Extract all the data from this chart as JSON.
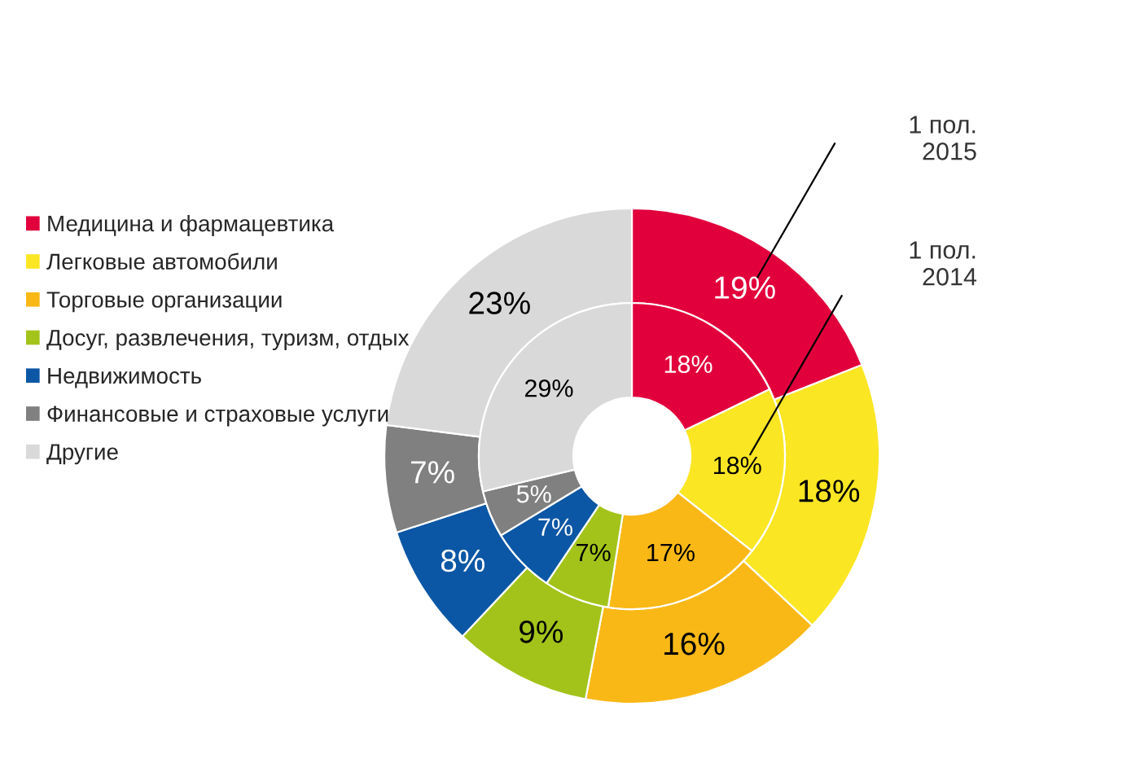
{
  "chart_data": {
    "type": "donut",
    "categories": [
      "Медицина и фармацевтика",
      "Легковые автомобили",
      "Торговые организации",
      "Досуг, развлечения, туризм, отдых",
      "Недвижимость",
      "Финансовые и страховые услуги",
      "Другие"
    ],
    "colors": [
      "#e2003c",
      "#fbe623",
      "#fab817",
      "#a3c31a",
      "#0c57a5",
      "#808080",
      "#d9d9d9"
    ],
    "series": [
      {
        "name": "1 пол.\n2015",
        "values": [
          19,
          18,
          16,
          9,
          8,
          7,
          23
        ],
        "value_labels": [
          "19%",
          "18%",
          "16%",
          "9%",
          "8%",
          "7%",
          "23%"
        ]
      },
      {
        "name": "1 пол.\n2014",
        "values": [
          18,
          18,
          17,
          7,
          7,
          5,
          29
        ],
        "value_labels": [
          "18%",
          "18%",
          "17%",
          "7%",
          "7%",
          "5%",
          "29%"
        ]
      }
    ],
    "legend": "left"
  }
}
